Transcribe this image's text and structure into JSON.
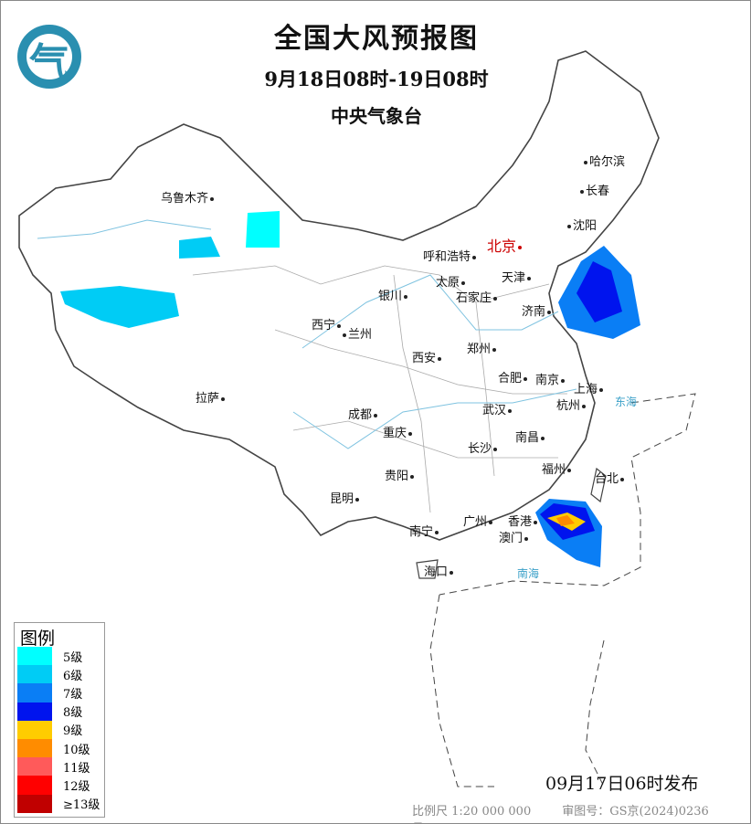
{
  "header": {
    "title": "全国大风预报图",
    "period": "9月18日08时-19日08时",
    "issuer": "中央气象台"
  },
  "logo": {
    "icon": "cma-logo-icon",
    "glyph": "气"
  },
  "cities": [
    "乌鲁木齐",
    "哈尔滨",
    "长春",
    "沈阳",
    "北京",
    "呼和浩特",
    "天津",
    "太原",
    "石家庄",
    "银川",
    "济南",
    "西宁",
    "兰州",
    "郑州",
    "西安",
    "合肥",
    "南京",
    "上海",
    "拉萨",
    "武汉",
    "杭州",
    "成都",
    "重庆",
    "南昌",
    "长沙",
    "福州",
    "台北",
    "贵阳",
    "昆明",
    "南宁",
    "广州",
    "香港",
    "澳门",
    "海口"
  ],
  "seas": [
    "东海",
    "南海"
  ],
  "legend": {
    "title": "图例",
    "items": [
      {
        "label": "5级",
        "color": "#00ffff"
      },
      {
        "label": "6级",
        "color": "#00ccf5"
      },
      {
        "label": "7级",
        "color": "#0a7ef5"
      },
      {
        "label": "8级",
        "color": "#0014ee"
      },
      {
        "label": "9级",
        "color": "#ffcc00"
      },
      {
        "label": "10级",
        "color": "#ff8c00"
      },
      {
        "label": "11级",
        "color": "#ff5a5a"
      },
      {
        "label": "12级",
        "color": "#ff0000"
      },
      {
        "label": "≥13级",
        "color": "#c00000"
      }
    ]
  },
  "footer": {
    "issued": "09月17日06时发布",
    "scale": "比例尺 1:20 000 000",
    "review_no": "审图号：GS京(2024)0236号"
  }
}
